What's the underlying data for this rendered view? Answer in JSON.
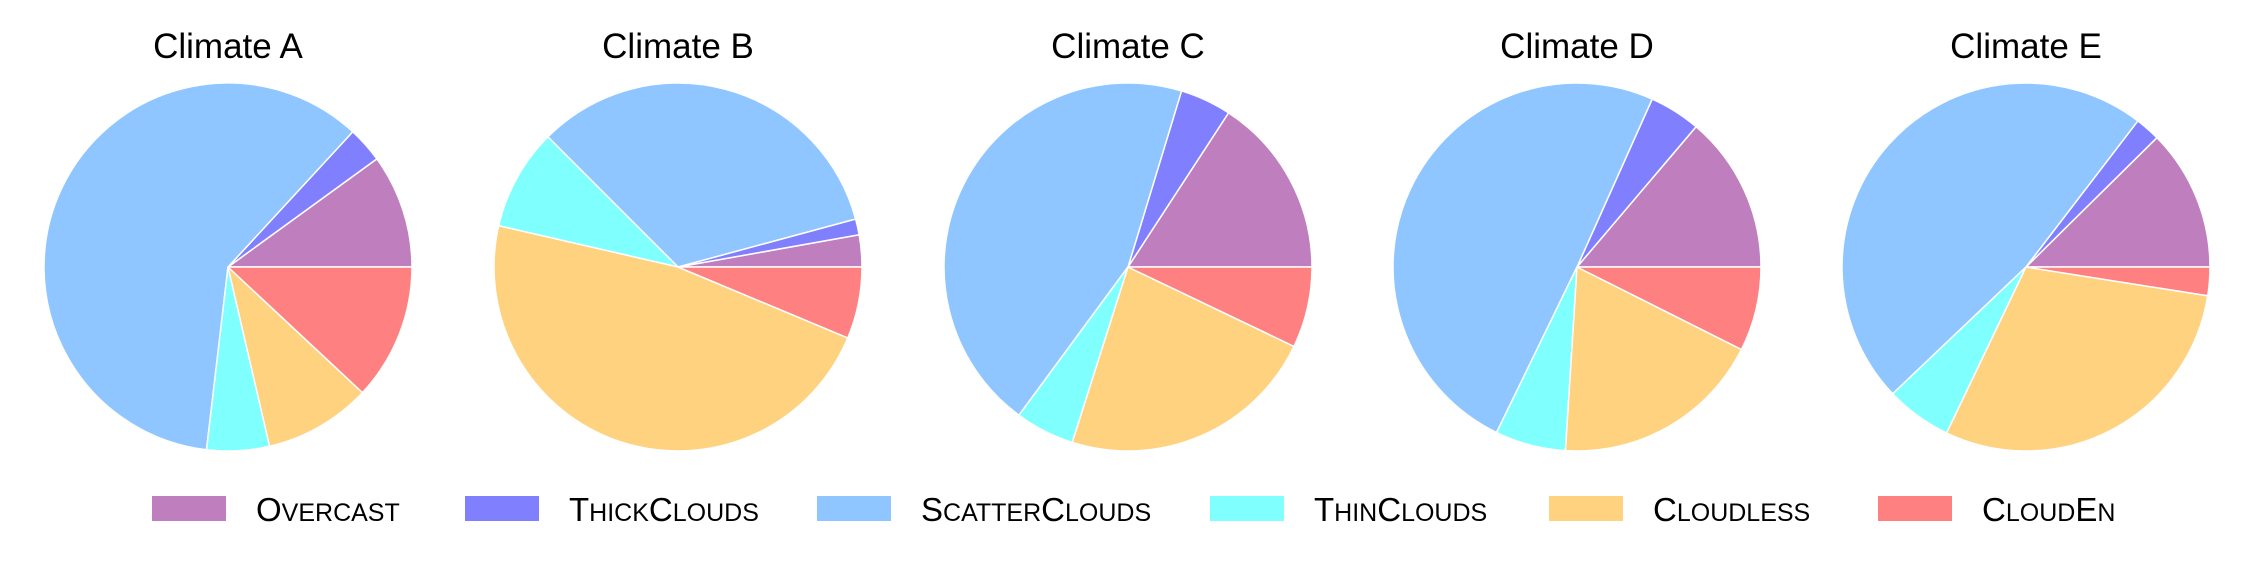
{
  "chart_data": [
    {
      "type": "pie",
      "title": "Climate A",
      "categories": [
        "Overcast",
        "ThickClouds",
        "ScatterClouds",
        "ThinClouds",
        "Cloudless",
        "CloudEn"
      ],
      "values": [
        10.2,
        3.2,
        61.2,
        5.6,
        9.6,
        12.2
      ]
    },
    {
      "type": "pie",
      "title": "Climate B",
      "categories": [
        "Overcast",
        "ThickClouds",
        "ScatterClouds",
        "ThinClouds",
        "Cloudless",
        "CloudEn"
      ],
      "values": [
        2.8,
        1.4,
        33.3,
        8.9,
        47.3,
        6.3
      ]
    },
    {
      "type": "pie",
      "title": "Climate C",
      "categories": [
        "Overcast",
        "ThickClouds",
        "ScatterClouds",
        "ThinClouds",
        "Cloudless",
        "CloudEn"
      ],
      "values": [
        15.8,
        4.5,
        44.6,
        5.2,
        22.8,
        7.1
      ]
    },
    {
      "type": "pie",
      "title": "Climate D",
      "categories": [
        "Overcast",
        "ThickClouds",
        "ScatterClouds",
        "ThinClouds",
        "Cloudless",
        "CloudEn"
      ],
      "values": [
        13.8,
        4.5,
        49.5,
        6.2,
        18.6,
        7.4
      ]
    },
    {
      "type": "pie",
      "title": "Climate E",
      "categories": [
        "Overcast",
        "ThickClouds",
        "ScatterClouds",
        "ThinClouds",
        "Cloudless",
        "CloudEn"
      ],
      "values": [
        12.4,
        2.2,
        47.5,
        5.8,
        29.6,
        2.5
      ]
    }
  ],
  "legend": {
    "placement": "bottom",
    "items": [
      {
        "label": "Overcast",
        "color": "#bf7fbf"
      },
      {
        "label": "ThickClouds",
        "color": "#8080ff"
      },
      {
        "label": "ScatterClouds",
        "color": "#8fc6ff"
      },
      {
        "label": "ThinClouds",
        "color": "#80ffff"
      },
      {
        "label": "Cloudless",
        "color": "#ffd27f"
      },
      {
        "label": "CloudEn",
        "color": "#ff8080"
      }
    ]
  }
}
